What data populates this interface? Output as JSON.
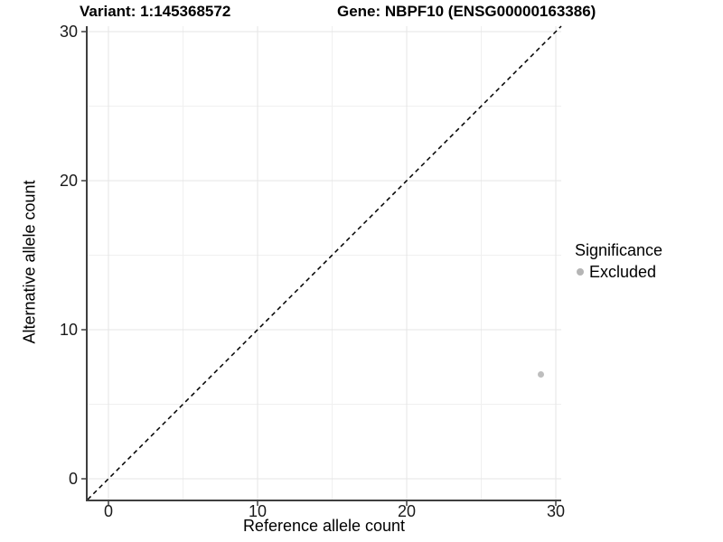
{
  "title": {
    "variant": "Variant: 1:145368572",
    "gene": "Gene: NBPF10 (ENSG00000163386)"
  },
  "chart_data": {
    "type": "scatter",
    "xlabel": "Reference allele count",
    "ylabel": "Alternative allele count",
    "xlim": [
      0,
      30
    ],
    "ylim": [
      0,
      30
    ],
    "x_ticks": [
      0,
      10,
      20,
      30
    ],
    "y_ticks": [
      0,
      10,
      20,
      30
    ],
    "grid": {
      "on": true,
      "minor": [
        5,
        15,
        25
      ]
    },
    "reference_line": {
      "kind": "y=x",
      "style": "dashed",
      "color": "#000000"
    },
    "series": [
      {
        "name": "Excluded",
        "color": "#bebebe",
        "points": [
          {
            "x": 29,
            "y": 7
          }
        ]
      }
    ],
    "legend": {
      "title": "Significance",
      "position": "right",
      "items": [
        {
          "label": "Excluded",
          "color": "#b5b5b5"
        }
      ]
    },
    "colors": {
      "grid_major": "#e5e5e5",
      "grid_minor": "#f0f0f0",
      "axis_line": "#3f3f3f",
      "tick_text": "#1a1a1a"
    }
  }
}
